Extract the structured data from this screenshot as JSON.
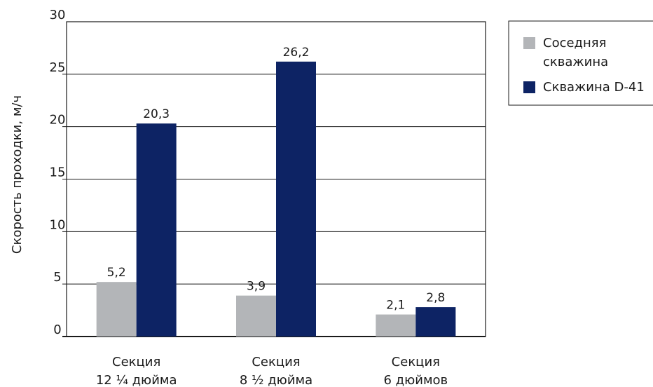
{
  "chart_data": {
    "type": "bar",
    "categories": [
      "Секция\n12 ¼ дюйма",
      "Секция\n8 ½ дюйма",
      "Секция\n6 дюймов"
    ],
    "series": [
      {
        "name": "Соседняя скважина",
        "color": "#b3b5b8",
        "values": [
          5.2,
          3.9,
          2.1
        ],
        "labels": [
          "5,2",
          "3,9",
          "2,1"
        ]
      },
      {
        "name": "Скважина D-41",
        "color": "#0d2364",
        "values": [
          20.3,
          26.2,
          2.8
        ],
        "labels": [
          "20,3",
          "26,2",
          "2,8"
        ]
      }
    ],
    "ylabel": "Скорость проходки, м/ч",
    "xlabel": "",
    "ylim": [
      0,
      30
    ],
    "yticks": [
      0,
      5,
      10,
      15,
      20,
      25,
      30
    ],
    "grid": true,
    "legend_position": "top-right",
    "legend_lines": [
      [
        "Соседняя",
        "скважина"
      ],
      [
        "Скважина D-41"
      ]
    ]
  }
}
